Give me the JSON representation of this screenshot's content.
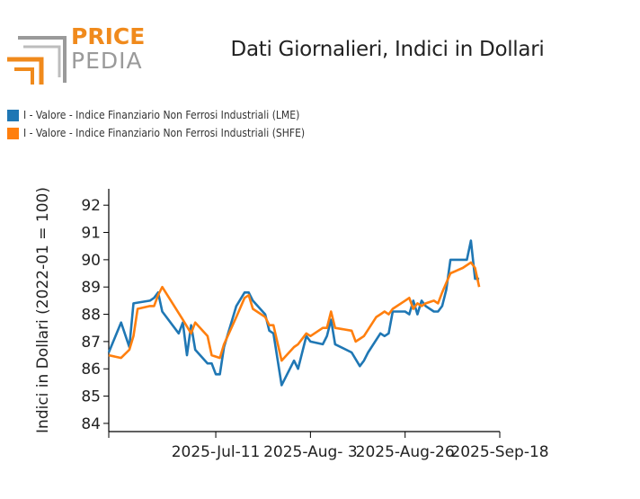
{
  "logo": {
    "top_text": "PRICE",
    "bottom_text": "PEDIA",
    "accent": "#F08A1C",
    "gray": "#9a9a9a"
  },
  "title": "Dati Giornalieri, Indici in Dollari",
  "legend": [
    {
      "label": "I - Valore - Indice Finanziario Non Ferrosi Industriali (LME)",
      "color": "#1F77B4"
    },
    {
      "label": "I - Valore - Indice Finanziario Non Ferrosi Industriali (SHFE)",
      "color": "#FF7F0E"
    }
  ],
  "chart_data": {
    "type": "line",
    "ylabel": "Indici in Dollari (2022-01 = 100)",
    "xlabel": "",
    "ylim": [
      83.7,
      92.6
    ],
    "yticks": [
      84,
      85,
      86,
      87,
      88,
      89,
      90,
      91,
      92
    ],
    "xrange": [
      "2025-06-15",
      "2025-09-18"
    ],
    "xticks": [
      {
        "date": "2025-06-15",
        "label": ""
      },
      {
        "date": "2025-07-11",
        "label": "2025-Jul-11"
      },
      {
        "date": "2025-08-03",
        "label": "2025-Aug- 3"
      },
      {
        "date": "2025-08-26",
        "label": "2025-Aug-26"
      },
      {
        "date": "2025-09-18",
        "label": "2025-Sep-18"
      }
    ],
    "series": [
      {
        "name": "I - Valore - Indice Finanziario Non Ferrosi Industriali (LME)",
        "color": "#1F77B4",
        "points": [
          [
            "2025-06-15",
            86.6
          ],
          [
            "2025-06-18",
            87.7
          ],
          [
            "2025-06-20",
            86.8
          ],
          [
            "2025-06-21",
            88.4
          ],
          [
            "2025-06-25",
            88.5
          ],
          [
            "2025-06-26",
            88.6
          ],
          [
            "2025-06-27",
            88.8
          ],
          [
            "2025-06-28",
            88.1
          ],
          [
            "2025-07-02",
            87.3
          ],
          [
            "2025-07-03",
            87.7
          ],
          [
            "2025-07-04",
            86.5
          ],
          [
            "2025-07-05",
            87.6
          ],
          [
            "2025-07-06",
            86.7
          ],
          [
            "2025-07-09",
            86.2
          ],
          [
            "2025-07-10",
            86.2
          ],
          [
            "2025-07-11",
            85.8
          ],
          [
            "2025-07-12",
            85.8
          ],
          [
            "2025-07-13",
            86.8
          ],
          [
            "2025-07-16",
            88.3
          ],
          [
            "2025-07-18",
            88.8
          ],
          [
            "2025-07-19",
            88.8
          ],
          [
            "2025-07-20",
            88.5
          ],
          [
            "2025-07-23",
            88.0
          ],
          [
            "2025-07-24",
            87.4
          ],
          [
            "2025-07-25",
            87.3
          ],
          [
            "2025-07-27",
            85.4
          ],
          [
            "2025-07-30",
            86.3
          ],
          [
            "2025-07-31",
            86.0
          ],
          [
            "2025-08-02",
            87.2
          ],
          [
            "2025-08-03",
            87.0
          ],
          [
            "2025-08-06",
            86.9
          ],
          [
            "2025-08-07",
            87.2
          ],
          [
            "2025-08-08",
            87.8
          ],
          [
            "2025-08-09",
            86.9
          ],
          [
            "2025-08-13",
            86.6
          ],
          [
            "2025-08-15",
            86.1
          ],
          [
            "2025-08-16",
            86.3
          ],
          [
            "2025-08-17",
            86.6
          ],
          [
            "2025-08-20",
            87.3
          ],
          [
            "2025-08-21",
            87.2
          ],
          [
            "2025-08-22",
            87.3
          ],
          [
            "2025-08-23",
            88.1
          ],
          [
            "2025-08-26",
            88.1
          ],
          [
            "2025-08-27",
            88.0
          ],
          [
            "2025-08-28",
            88.5
          ],
          [
            "2025-08-29",
            88.0
          ],
          [
            "2025-08-30",
            88.5
          ],
          [
            "2025-08-31",
            88.3
          ],
          [
            "2025-09-02",
            88.1
          ],
          [
            "2025-09-03",
            88.1
          ],
          [
            "2025-09-04",
            88.3
          ],
          [
            "2025-09-05",
            88.9
          ],
          [
            "2025-09-06",
            90.0
          ],
          [
            "2025-09-09",
            90.0
          ],
          [
            "2025-09-10",
            90.0
          ],
          [
            "2025-09-11",
            90.7
          ],
          [
            "2025-09-12",
            89.3
          ],
          [
            "2025-09-13",
            89.3
          ]
        ]
      },
      {
        "name": "I - Valore - Indice Finanziario Non Ferrosi Industriali (SHFE)",
        "color": "#FF7F0E",
        "points": [
          [
            "2025-06-15",
            86.5
          ],
          [
            "2025-06-18",
            86.4
          ],
          [
            "2025-06-20",
            86.7
          ],
          [
            "2025-06-21",
            87.2
          ],
          [
            "2025-06-22",
            88.2
          ],
          [
            "2025-06-25",
            88.3
          ],
          [
            "2025-06-26",
            88.3
          ],
          [
            "2025-06-27",
            88.7
          ],
          [
            "2025-06-28",
            89.0
          ],
          [
            "2025-07-03",
            87.8
          ],
          [
            "2025-07-05",
            87.3
          ],
          [
            "2025-07-06",
            87.7
          ],
          [
            "2025-07-09",
            87.2
          ],
          [
            "2025-07-10",
            86.5
          ],
          [
            "2025-07-12",
            86.4
          ],
          [
            "2025-07-13",
            86.9
          ],
          [
            "2025-07-16",
            87.9
          ],
          [
            "2025-07-18",
            88.6
          ],
          [
            "2025-07-19",
            88.7
          ],
          [
            "2025-07-20",
            88.2
          ],
          [
            "2025-07-23",
            87.9
          ],
          [
            "2025-07-24",
            87.6
          ],
          [
            "2025-07-25",
            87.6
          ],
          [
            "2025-07-27",
            86.3
          ],
          [
            "2025-07-30",
            86.8
          ],
          [
            "2025-07-31",
            86.9
          ],
          [
            "2025-08-02",
            87.3
          ],
          [
            "2025-08-03",
            87.2
          ],
          [
            "2025-08-06",
            87.5
          ],
          [
            "2025-08-07",
            87.5
          ],
          [
            "2025-08-08",
            88.1
          ],
          [
            "2025-08-09",
            87.5
          ],
          [
            "2025-08-13",
            87.4
          ],
          [
            "2025-08-14",
            87.0
          ],
          [
            "2025-08-15",
            87.1
          ],
          [
            "2025-08-16",
            87.2
          ],
          [
            "2025-08-19",
            87.9
          ],
          [
            "2025-08-20",
            88.0
          ],
          [
            "2025-08-21",
            88.1
          ],
          [
            "2025-08-22",
            88.0
          ],
          [
            "2025-08-23",
            88.2
          ],
          [
            "2025-08-26",
            88.5
          ],
          [
            "2025-08-27",
            88.6
          ],
          [
            "2025-08-28",
            88.2
          ],
          [
            "2025-08-29",
            88.4
          ],
          [
            "2025-08-30",
            88.3
          ],
          [
            "2025-08-31",
            88.4
          ],
          [
            "2025-09-02",
            88.5
          ],
          [
            "2025-09-03",
            88.4
          ],
          [
            "2025-09-04",
            88.8
          ],
          [
            "2025-09-06",
            89.5
          ],
          [
            "2025-09-09",
            89.7
          ],
          [
            "2025-09-11",
            89.9
          ],
          [
            "2025-09-12",
            89.7
          ],
          [
            "2025-09-13",
            89.0
          ]
        ]
      }
    ]
  }
}
